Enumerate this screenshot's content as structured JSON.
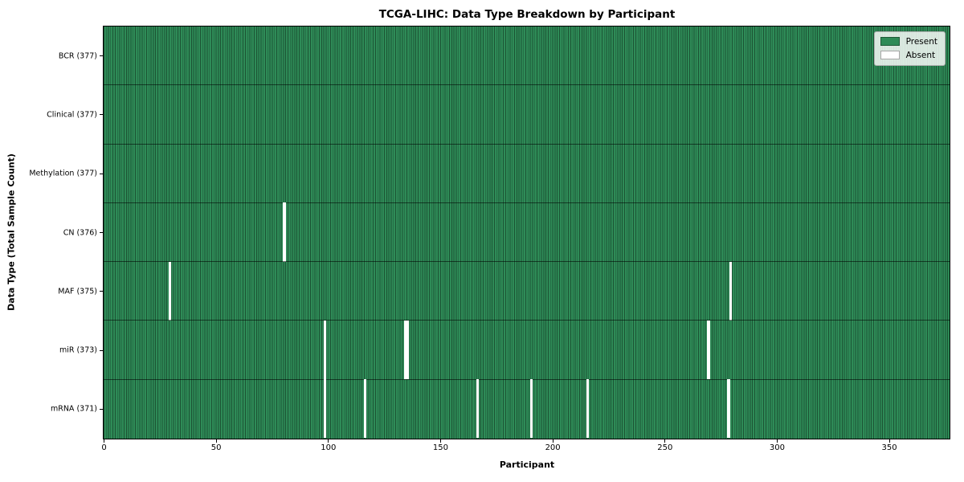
{
  "title": "TCGA-LIHC: Data Type Breakdown by Participant",
  "chart_data": {
    "type": "heatmap",
    "title": "TCGA-LIHC: Data Type Breakdown by Participant",
    "xlabel": "Participant",
    "ylabel": "Data Type (Total Sample Count)",
    "n_participants": 377,
    "x_range": [
      0,
      377
    ],
    "x_ticks": [
      0,
      50,
      100,
      150,
      200,
      250,
      300,
      350
    ],
    "grid": false,
    "legend": {
      "position": "upper right",
      "entries": [
        {
          "label": "Present",
          "color": "#2e8b57"
        },
        {
          "label": "Absent",
          "color": "#ffffff"
        }
      ]
    },
    "colors": {
      "present": "#2e8b57",
      "absent": "#ffffff",
      "cell_edge": "rgba(0,0,0,0.4)",
      "row_separator": "rgba(0,0,0,0.55)"
    },
    "rows": [
      {
        "data_type": "BCR",
        "label": "BCR (377)",
        "total": 377,
        "absent_participants": []
      },
      {
        "data_type": "Clinical",
        "label": "Clinical (377)",
        "total": 377,
        "absent_participants": []
      },
      {
        "data_type": "Methylation",
        "label": "Methylation (377)",
        "total": 377,
        "absent_participants": []
      },
      {
        "data_type": "CN",
        "label": "CN (376)",
        "total": 376,
        "absent_participants": [
          80
        ]
      },
      {
        "data_type": "MAF",
        "label": "MAF (375)",
        "total": 375,
        "absent_participants": [
          29,
          279
        ]
      },
      {
        "data_type": "miR",
        "label": "miR (373)",
        "total": 373,
        "absent_participants": [
          98,
          134,
          135,
          269
        ]
      },
      {
        "data_type": "mRNA",
        "label": "mRNA (371)",
        "total": 371,
        "absent_participants": [
          98,
          116,
          166,
          190,
          215,
          278
        ]
      }
    ]
  }
}
